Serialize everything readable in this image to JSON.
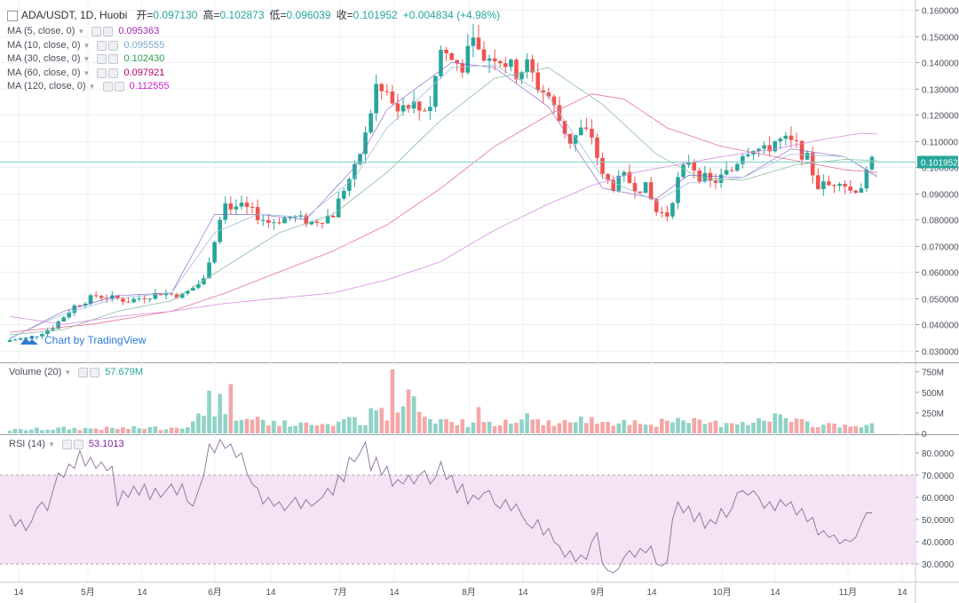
{
  "header": {
    "symbol": "ADA/USDT, 1D, Huobi",
    "open_label": "开=",
    "open": "0.097130",
    "high_label": "高=",
    "high": "0.102873",
    "low_label": "低=",
    "low": "0.096039",
    "close_label": "收=",
    "close": "0.101952",
    "change": "+0.004834 (+4.98%)"
  },
  "indicators": [
    {
      "label": "MA (5, close, 0)",
      "value": "0.095363",
      "color": "#9c27b0"
    },
    {
      "label": "MA (10, close, 0)",
      "value": "0.095555",
      "color": "#7aa7c7"
    },
    {
      "label": "MA (30, close, 0)",
      "value": "0.102430",
      "color": "#2e9e4f"
    },
    {
      "label": "MA (60, close, 0)",
      "value": "0.097921",
      "color": "#b0006e"
    },
    {
      "label": "MA (120, close, 0)",
      "value": "0.112555",
      "color": "#c81fd0"
    }
  ],
  "volume_legend": {
    "label": "Volume (20)",
    "value": "57.679M",
    "color": "#26a69a"
  },
  "rsi_legend": {
    "label": "RSI (14)",
    "value": "53.1013",
    "color": "#7b1fa2"
  },
  "brand": "Chart by TradingView",
  "colors": {
    "up": "#26a69a",
    "down": "#ef5350",
    "grid": "#eef0f3",
    "rsi_band": "#f3e3f3"
  },
  "chart_data": {
    "type": "candlestick",
    "price_axis": [
      "0.160000",
      "0.150000",
      "0.140000",
      "0.130000",
      "0.120000",
      "0.110000",
      "0.100000",
      "0.090000",
      "0.080000",
      "0.070000",
      "0.060000",
      "0.050000",
      "0.040000",
      "0.030000"
    ],
    "price_range": [
      0.0255,
      0.1625
    ],
    "last_price_label": "0.101952",
    "volume_axis": [
      "750M",
      "500M",
      "250M",
      "0"
    ],
    "volume_range": [
      0,
      800
    ],
    "rsi_axis": [
      "80.0000",
      "70.0000",
      "60.0000",
      "50.0000",
      "40.0000",
      "30.0000"
    ],
    "rsi_range": [
      22,
      88
    ],
    "rsi_band": [
      30,
      70
    ],
    "x_ticks": [
      "14",
      "5月",
      "14",
      "6月",
      "14",
      "7月",
      "14",
      "8月",
      "14",
      "9月",
      "14",
      "10月",
      "14",
      "11月",
      "14"
    ],
    "ma_anchors": {
      "ma5": [
        [
          0,
          0.0345
        ],
        [
          10,
          0.045
        ],
        [
          20,
          0.051
        ],
        [
          30,
          0.052
        ],
        [
          38,
          0.082
        ],
        [
          46,
          0.082
        ],
        [
          55,
          0.08
        ],
        [
          64,
          0.1
        ],
        [
          70,
          0.122
        ],
        [
          82,
          0.14
        ],
        [
          90,
          0.138
        ],
        [
          100,
          0.123
        ],
        [
          110,
          0.092
        ],
        [
          120,
          0.088
        ],
        [
          126,
          0.097
        ],
        [
          136,
          0.096
        ],
        [
          145,
          0.107
        ],
        [
          155,
          0.104
        ],
        [
          162,
          0.095
        ]
      ],
      "ma10": [
        [
          0,
          0.0348
        ],
        [
          10,
          0.044
        ],
        [
          20,
          0.05
        ],
        [
          30,
          0.052
        ],
        [
          38,
          0.075
        ],
        [
          46,
          0.082
        ],
        [
          55,
          0.081
        ],
        [
          64,
          0.096
        ],
        [
          70,
          0.115
        ],
        [
          82,
          0.138
        ],
        [
          90,
          0.139
        ],
        [
          100,
          0.127
        ],
        [
          110,
          0.096
        ],
        [
          120,
          0.087
        ],
        [
          126,
          0.094
        ],
        [
          136,
          0.096
        ],
        [
          145,
          0.105
        ],
        [
          155,
          0.104
        ],
        [
          162,
          0.0956
        ]
      ],
      "ma30": [
        [
          0,
          0.036
        ],
        [
          10,
          0.038
        ],
        [
          20,
          0.045
        ],
        [
          30,
          0.049
        ],
        [
          40,
          0.062
        ],
        [
          50,
          0.075
        ],
        [
          60,
          0.082
        ],
        [
          70,
          0.098
        ],
        [
          80,
          0.118
        ],
        [
          90,
          0.134
        ],
        [
          100,
          0.138
        ],
        [
          110,
          0.124
        ],
        [
          120,
          0.105
        ],
        [
          128,
          0.096
        ],
        [
          136,
          0.095
        ],
        [
          146,
          0.101
        ],
        [
          155,
          0.103
        ],
        [
          162,
          0.1024
        ]
      ],
      "ma60": [
        [
          0,
          0.037
        ],
        [
          15,
          0.04
        ],
        [
          30,
          0.045
        ],
        [
          40,
          0.052
        ],
        [
          50,
          0.06
        ],
        [
          60,
          0.068
        ],
        [
          70,
          0.078
        ],
        [
          80,
          0.092
        ],
        [
          90,
          0.108
        ],
        [
          100,
          0.12
        ],
        [
          108,
          0.128
        ],
        [
          114,
          0.126
        ],
        [
          122,
          0.115
        ],
        [
          132,
          0.108
        ],
        [
          142,
          0.104
        ],
        [
          155,
          0.099
        ],
        [
          162,
          0.0979
        ]
      ],
      "ma120": [
        [
          0,
          0.043
        ],
        [
          10,
          0.04
        ],
        [
          20,
          0.043
        ],
        [
          30,
          0.045
        ],
        [
          40,
          0.048
        ],
        [
          50,
          0.05
        ],
        [
          60,
          0.052
        ],
        [
          70,
          0.057
        ],
        [
          80,
          0.064
        ],
        [
          90,
          0.076
        ],
        [
          100,
          0.086
        ],
        [
          108,
          0.093
        ],
        [
          116,
          0.098
        ],
        [
          124,
          0.101
        ],
        [
          132,
          0.104
        ],
        [
          142,
          0.107
        ],
        [
          152,
          0.111
        ],
        [
          158,
          0.113
        ],
        [
          162,
          0.1126
        ]
      ]
    },
    "close_anchors": [
      [
        0,
        0.034
      ],
      [
        4,
        0.035
      ],
      [
        8,
        0.039
      ],
      [
        12,
        0.047
      ],
      [
        16,
        0.051
      ],
      [
        22,
        0.049
      ],
      [
        28,
        0.052
      ],
      [
        32,
        0.051
      ],
      [
        36,
        0.057
      ],
      [
        38,
        0.073
      ],
      [
        40,
        0.086
      ],
      [
        44,
        0.084
      ],
      [
        48,
        0.079
      ],
      [
        52,
        0.081
      ],
      [
        56,
        0.079
      ],
      [
        60,
        0.082
      ],
      [
        62,
        0.092
      ],
      [
        64,
        0.099
      ],
      [
        66,
        0.112
      ],
      [
        68,
        0.131
      ],
      [
        70,
        0.126
      ],
      [
        72,
        0.122
      ],
      [
        74,
        0.125
      ],
      [
        76,
        0.122
      ],
      [
        78,
        0.124
      ],
      [
        80,
        0.145
      ],
      [
        82,
        0.141
      ],
      [
        84,
        0.139
      ],
      [
        86,
        0.147
      ],
      [
        88,
        0.142
      ],
      [
        90,
        0.143
      ],
      [
        92,
        0.14
      ],
      [
        94,
        0.136
      ],
      [
        96,
        0.139
      ],
      [
        98,
        0.131
      ],
      [
        100,
        0.127
      ],
      [
        102,
        0.118
      ],
      [
        104,
        0.11
      ],
      [
        106,
        0.114
      ],
      [
        108,
        0.112
      ],
      [
        110,
        0.096
      ],
      [
        112,
        0.093
      ],
      [
        114,
        0.096
      ],
      [
        116,
        0.093
      ],
      [
        118,
        0.092
      ],
      [
        120,
        0.083
      ],
      [
        122,
        0.082
      ],
      [
        124,
        0.095
      ],
      [
        126,
        0.103
      ],
      [
        128,
        0.097
      ],
      [
        130,
        0.094
      ],
      [
        132,
        0.096
      ],
      [
        134,
        0.099
      ],
      [
        136,
        0.106
      ],
      [
        138,
        0.108
      ],
      [
        140,
        0.106
      ],
      [
        142,
        0.11
      ],
      [
        144,
        0.11
      ],
      [
        146,
        0.108
      ],
      [
        148,
        0.103
      ],
      [
        150,
        0.093
      ],
      [
        152,
        0.093
      ],
      [
        154,
        0.096
      ],
      [
        156,
        0.091
      ],
      [
        158,
        0.093
      ],
      [
        159,
        0.097
      ],
      [
        160,
        0.102
      ]
    ],
    "volume_anchors": [
      [
        0,
        40
      ],
      [
        10,
        60
      ],
      [
        20,
        60
      ],
      [
        30,
        70
      ],
      [
        34,
        120
      ],
      [
        36,
        240
      ],
      [
        38,
        330
      ],
      [
        40,
        250
      ],
      [
        42,
        160
      ],
      [
        46,
        180
      ],
      [
        50,
        120
      ],
      [
        55,
        100
      ],
      [
        60,
        130
      ],
      [
        64,
        160
      ],
      [
        66,
        120
      ],
      [
        68,
        340
      ],
      [
        70,
        180
      ],
      [
        72,
        250
      ],
      [
        74,
        400
      ],
      [
        76,
        300
      ],
      [
        78,
        160
      ],
      [
        80,
        170
      ],
      [
        82,
        140
      ],
      [
        84,
        150
      ],
      [
        86,
        110
      ],
      [
        90,
        140
      ],
      [
        95,
        200
      ],
      [
        100,
        130
      ],
      [
        110,
        160
      ],
      [
        120,
        130
      ],
      [
        126,
        140
      ],
      [
        132,
        120
      ],
      [
        136,
        160
      ],
      [
        140,
        140
      ],
      [
        142,
        220
      ],
      [
        146,
        130
      ],
      [
        150,
        110
      ],
      [
        156,
        100
      ],
      [
        160,
        90
      ],
      [
        162,
        70
      ]
    ],
    "volume_spikes": [
      [
        37,
        520
      ],
      [
        39,
        480
      ],
      [
        41,
        600
      ],
      [
        71,
        780
      ],
      [
        69,
        310
      ],
      [
        73,
        330
      ],
      [
        87,
        320
      ]
    ],
    "rsi_anchors": [
      [
        0,
        52
      ],
      [
        1,
        47
      ],
      [
        2,
        50
      ],
      [
        3,
        45
      ],
      [
        4,
        49
      ],
      [
        5,
        55
      ],
      [
        6,
        58
      ],
      [
        7,
        54
      ],
      [
        8,
        63
      ],
      [
        9,
        71
      ],
      [
        10,
        69
      ],
      [
        11,
        75
      ],
      [
        12,
        73
      ],
      [
        13,
        81
      ],
      [
        14,
        74
      ],
      [
        15,
        78
      ],
      [
        16,
        73
      ],
      [
        17,
        76
      ],
      [
        18,
        72
      ],
      [
        19,
        74
      ],
      [
        20,
        56
      ],
      [
        21,
        63
      ],
      [
        22,
        60
      ],
      [
        23,
        65
      ],
      [
        24,
        61
      ],
      [
        25,
        66
      ],
      [
        26,
        59
      ],
      [
        27,
        64
      ],
      [
        28,
        60
      ],
      [
        29,
        63
      ],
      [
        30,
        66
      ],
      [
        31,
        61
      ],
      [
        32,
        66
      ],
      [
        33,
        58
      ],
      [
        34,
        56
      ],
      [
        35,
        63
      ],
      [
        36,
        70
      ],
      [
        37,
        84
      ],
      [
        38,
        80
      ],
      [
        39,
        86
      ],
      [
        40,
        82
      ],
      [
        41,
        84
      ],
      [
        42,
        78
      ],
      [
        43,
        80
      ],
      [
        44,
        71
      ],
      [
        45,
        66
      ],
      [
        46,
        64
      ],
      [
        47,
        57
      ],
      [
        48,
        60
      ],
      [
        49,
        56
      ],
      [
        50,
        58
      ],
      [
        51,
        54
      ],
      [
        52,
        57
      ],
      [
        53,
        60
      ],
      [
        54,
        55
      ],
      [
        55,
        59
      ],
      [
        56,
        56
      ],
      [
        57,
        58
      ],
      [
        58,
        60
      ],
      [
        59,
        64
      ],
      [
        60,
        61
      ],
      [
        61,
        70
      ],
      [
        62,
        67
      ],
      [
        63,
        78
      ],
      [
        64,
        76
      ],
      [
        65,
        80
      ],
      [
        66,
        85
      ],
      [
        67,
        72
      ],
      [
        68,
        78
      ],
      [
        69,
        70
      ],
      [
        70,
        74
      ],
      [
        71,
        65
      ],
      [
        72,
        68
      ],
      [
        73,
        66
      ],
      [
        74,
        70
      ],
      [
        75,
        66
      ],
      [
        76,
        70
      ],
      [
        77,
        72
      ],
      [
        78,
        66
      ],
      [
        79,
        69
      ],
      [
        80,
        76
      ],
      [
        81,
        68
      ],
      [
        82,
        70
      ],
      [
        83,
        62
      ],
      [
        84,
        66
      ],
      [
        85,
        57
      ],
      [
        86,
        61
      ],
      [
        87,
        59
      ],
      [
        88,
        62
      ],
      [
        89,
        63
      ],
      [
        90,
        57
      ],
      [
        91,
        55
      ],
      [
        92,
        59
      ],
      [
        93,
        54
      ],
      [
        94,
        57
      ],
      [
        95,
        52
      ],
      [
        96,
        48
      ],
      [
        97,
        46
      ],
      [
        98,
        50
      ],
      [
        99,
        43
      ],
      [
        100,
        46
      ],
      [
        101,
        40
      ],
      [
        102,
        38
      ],
      [
        103,
        33
      ],
      [
        104,
        36
      ],
      [
        105,
        31
      ],
      [
        106,
        34
      ],
      [
        107,
        32
      ],
      [
        108,
        40
      ],
      [
        109,
        44
      ],
      [
        110,
        30
      ],
      [
        111,
        27
      ],
      [
        112,
        26
      ],
      [
        113,
        28
      ],
      [
        114,
        33
      ],
      [
        115,
        36
      ],
      [
        116,
        33
      ],
      [
        117,
        37
      ],
      [
        118,
        35
      ],
      [
        119,
        38
      ],
      [
        120,
        30
      ],
      [
        121,
        29
      ],
      [
        122,
        31
      ],
      [
        123,
        50
      ],
      [
        124,
        58
      ],
      [
        125,
        53
      ],
      [
        126,
        56
      ],
      [
        127,
        49
      ],
      [
        128,
        53
      ],
      [
        129,
        46
      ],
      [
        130,
        50
      ],
      [
        131,
        48
      ],
      [
        132,
        55
      ],
      [
        133,
        51
      ],
      [
        134,
        55
      ],
      [
        135,
        62
      ],
      [
        136,
        63
      ],
      [
        137,
        61
      ],
      [
        138,
        63
      ],
      [
        139,
        60
      ],
      [
        140,
        55
      ],
      [
        141,
        58
      ],
      [
        142,
        54
      ],
      [
        143,
        59
      ],
      [
        144,
        56
      ],
      [
        145,
        58
      ],
      [
        146,
        52
      ],
      [
        147,
        55
      ],
      [
        148,
        49
      ],
      [
        149,
        51
      ],
      [
        150,
        43
      ],
      [
        151,
        45
      ],
      [
        152,
        42
      ],
      [
        153,
        43
      ],
      [
        154,
        39
      ],
      [
        155,
        41
      ],
      [
        156,
        40
      ],
      [
        157,
        42
      ],
      [
        158,
        48
      ],
      [
        159,
        53
      ],
      [
        160,
        53
      ]
    ]
  }
}
